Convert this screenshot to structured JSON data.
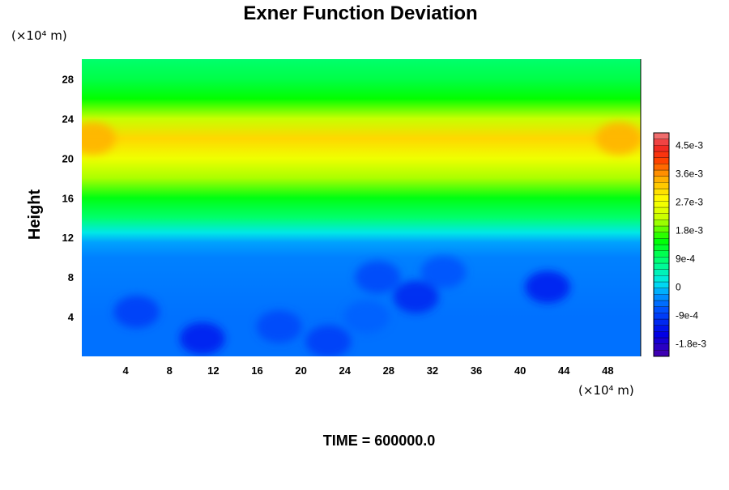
{
  "chart_data": {
    "type": "heatmap",
    "title": "Exner Function Deviation",
    "ylabel": "Height",
    "y_unit_label": "(×10⁴ m)",
    "x_unit_label": "(×10⁴ m)",
    "xlim": [
      0,
      51
    ],
    "ylim": [
      0,
      30
    ],
    "x_ticks": [
      "4",
      "8",
      "12",
      "16",
      "20",
      "24",
      "28",
      "32",
      "36",
      "40",
      "44",
      "48"
    ],
    "y_ticks": [
      "4",
      "8",
      "12",
      "16",
      "20",
      "24",
      "28"
    ],
    "x_tick_values": [
      4,
      8,
      12,
      16,
      20,
      24,
      28,
      32,
      36,
      40,
      44,
      48
    ],
    "y_tick_values": [
      4,
      8,
      12,
      16,
      20,
      24,
      28
    ],
    "footer": "TIME = 600000.0",
    "colorbar": {
      "min": -0.0022,
      "max": 0.0049,
      "labels": [
        "4.5e-3",
        "3.6e-3",
        "2.7e-3",
        "1.8e-3",
        "9e-4",
        "0",
        "-9e-4",
        "-1.8e-3"
      ],
      "label_values": [
        0.0045,
        0.0036,
        0.0027,
        0.0018,
        0.0009,
        0,
        -0.0009,
        -0.0018
      ]
    },
    "vertical_profile": [
      {
        "y": 0,
        "v": -0.0005
      },
      {
        "y": 4,
        "v": -0.0005
      },
      {
        "y": 10,
        "v": -0.0004
      },
      {
        "y": 11.5,
        "v": -0.0002
      },
      {
        "y": 12.5,
        "v": 0.0002
      },
      {
        "y": 14,
        "v": 0.0009
      },
      {
        "y": 16,
        "v": 0.0014
      },
      {
        "y": 18,
        "v": 0.0021
      },
      {
        "y": 20,
        "v": 0.0026
      },
      {
        "y": 22,
        "v": 0.0031
      },
      {
        "y": 24,
        "v": 0.0022
      },
      {
        "y": 26,
        "v": 0.0015
      },
      {
        "y": 28,
        "v": 0.0011
      },
      {
        "y": 30,
        "v": 0.0009
      }
    ],
    "anomalies": [
      {
        "x": 5,
        "y": 4.5,
        "v": -0.0009
      },
      {
        "x": 11,
        "y": 1.8,
        "v": -0.0012
      },
      {
        "x": 18,
        "y": 3,
        "v": -0.0008
      },
      {
        "x": 22.5,
        "y": 1.5,
        "v": -0.0009
      },
      {
        "x": 27,
        "y": 8,
        "v": -0.0008
      },
      {
        "x": 30.5,
        "y": 6,
        "v": -0.0011
      },
      {
        "x": 33,
        "y": 8.5,
        "v": -0.0007
      },
      {
        "x": 42.5,
        "y": 7,
        "v": -0.0012
      },
      {
        "x": 26,
        "y": 4,
        "v": -0.0006
      },
      {
        "x": 1,
        "y": 22,
        "v": 0.0034
      },
      {
        "x": 49,
        "y": 22,
        "v": 0.0034
      }
    ]
  }
}
